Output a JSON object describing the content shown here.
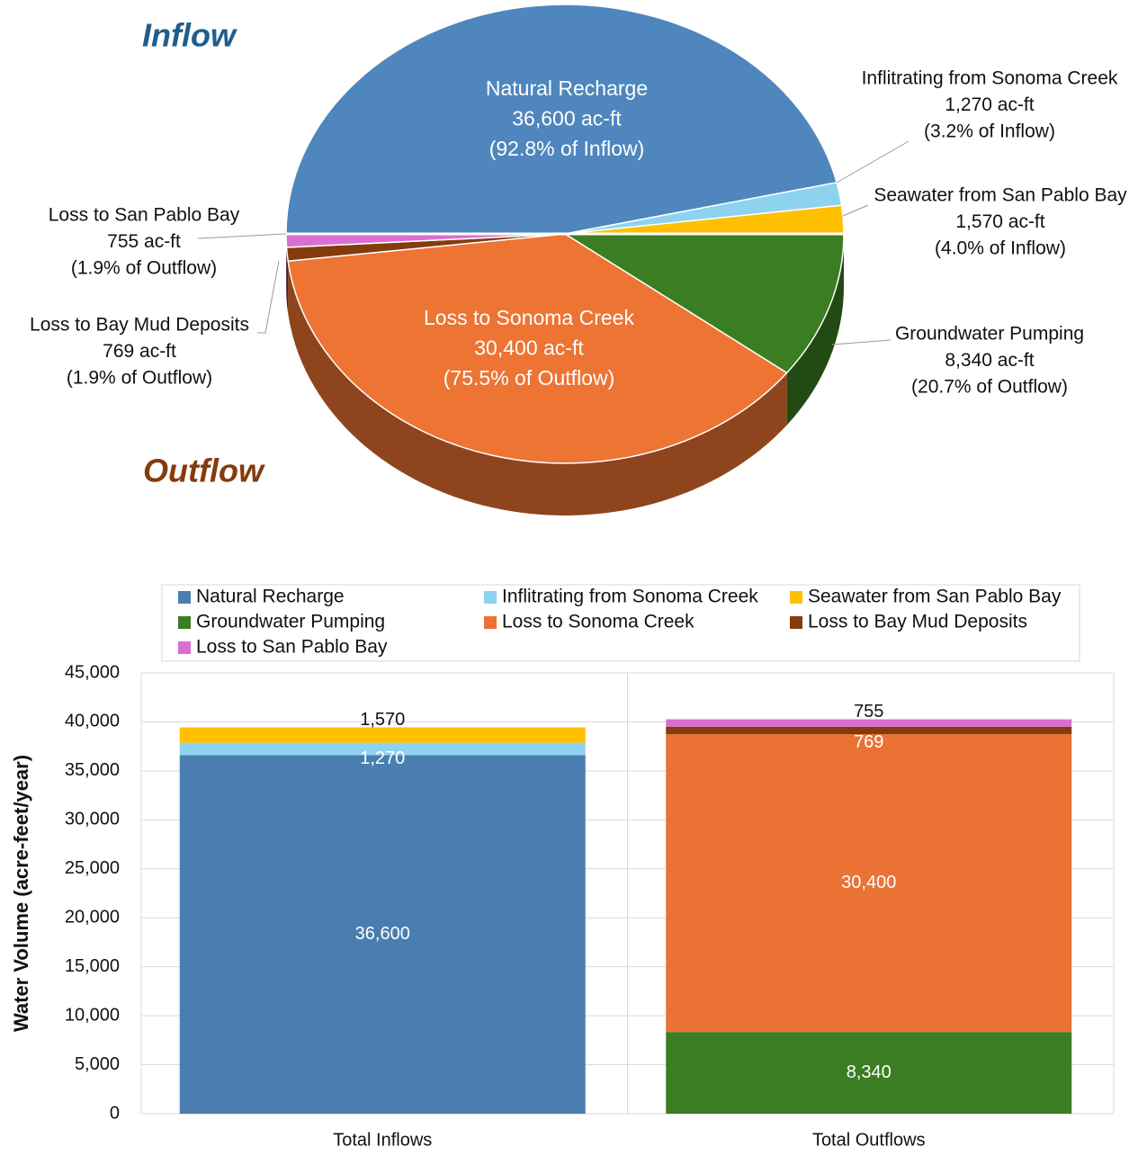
{
  "chart_data": [
    {
      "type": "pie",
      "groups": [
        {
          "title": "Inflow",
          "title_color": "#1f5e8d",
          "categories": [
            "Natural Recharge",
            "Inflitrating from Sonoma Creek",
            "Seawater from San Pablo Bay"
          ],
          "values": [
            36600,
            1270,
            1570
          ],
          "value_labels": [
            "36,600 ac-ft",
            "1,270 ac-ft",
            "1,570 ac-ft"
          ],
          "percent_labels": [
            "(92.8% of Inflow)",
            "(3.2% of Inflow)",
            "(4.0% of Inflow)"
          ],
          "colors": [
            "#4f86bd",
            "#8dd3f0",
            "#ffc000"
          ]
        },
        {
          "title": "Outflow",
          "title_color": "#843c0c",
          "categories": [
            "Groundwater Pumping",
            "Loss to Sonoma Creek",
            "Loss to Bay Mud Deposits",
            "Loss to San Pablo Bay"
          ],
          "values": [
            8340,
            30400,
            769,
            755
          ],
          "value_labels": [
            "8,340 ac-ft",
            "30,400 ac-ft",
            "769 ac-ft",
            "755 ac-ft"
          ],
          "percent_labels": [
            "(20.7% of Outflow)",
            "(75.5% of Outflow)",
            "(1.9% of Outflow)",
            "(1.9% of Outflow)"
          ],
          "colors": [
            "#3a7d22",
            "#ed7433",
            "#843c0c",
            "#da6fd2"
          ]
        }
      ]
    },
    {
      "type": "stacked_bar",
      "y_label": "Water Volume (acre-feet/year)",
      "categories": [
        "Total Inflows",
        "Total Outflows"
      ],
      "series": [
        {
          "name": "Natural Recharge",
          "color": "#4a7eb0",
          "values": [
            36600,
            null
          ],
          "value_labels": [
            "36,600",
            null
          ]
        },
        {
          "name": "Inflitrating from Sonoma Creek",
          "color": "#8dd3f0",
          "values": [
            1270,
            null
          ],
          "value_labels": [
            "1,270",
            null
          ]
        },
        {
          "name": "Seawater from San Pablo Bay",
          "color": "#ffc000",
          "values": [
            1570,
            null
          ],
          "value_labels": [
            "1,570",
            null
          ]
        },
        {
          "name": "Groundwater Pumping",
          "color": "#3a7d22",
          "values": [
            null,
            8340
          ],
          "value_labels": [
            null,
            "8,340"
          ]
        },
        {
          "name": "Loss to Sonoma Creek",
          "color": "#ea7234",
          "values": [
            null,
            30400
          ],
          "value_labels": [
            null,
            "30,400"
          ]
        },
        {
          "name": "Loss to Bay Mud Deposits",
          "color": "#843c0c",
          "values": [
            null,
            769
          ],
          "value_labels": [
            null,
            "769"
          ]
        },
        {
          "name": "Loss to San Pablo Bay",
          "color": "#da6fd2",
          "values": [
            null,
            755
          ],
          "value_labels": [
            null,
            "755"
          ]
        }
      ],
      "ylim": [
        0,
        45000
      ],
      "yticks": [
        0,
        {
          "value": 5000,
          "label": "5,000"
        },
        {
          "value": 10000,
          "label": "10,000"
        },
        {
          "value": 15000,
          "label": "15,000"
        },
        {
          "value": 20000,
          "label": "20,000"
        },
        {
          "value": 25000,
          "label": "25,000"
        },
        {
          "value": 30000,
          "label": "30,000"
        },
        {
          "value": 35000,
          "label": "35,000"
        },
        {
          "value": 40000,
          "label": "40,000"
        },
        {
          "value": 45000,
          "label": "45,000"
        }
      ],
      "grid": true
    }
  ]
}
